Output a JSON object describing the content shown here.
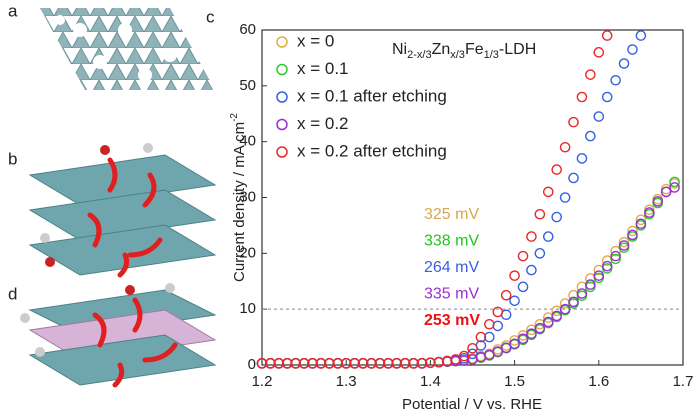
{
  "panel_labels": [
    "a",
    "b",
    "d"
  ],
  "chart_data": {
    "type": "scatter",
    "panel_label": "c",
    "x_label": "Potential / V vs. RHE",
    "y_label": [
      "Current density / mA cm",
      "-2"
    ],
    "formula": [
      "Ni",
      "2-x/3",
      "Zn",
      "x/3",
      "Fe",
      "1/3",
      "-LDH"
    ],
    "xlim": [
      1.2,
      1.7
    ],
    "xticks": [
      1.2,
      1.3,
      1.4,
      1.5,
      1.6,
      1.7
    ],
    "ylim": [
      0,
      60
    ],
    "yticks": [
      0,
      10,
      20,
      30,
      40,
      50,
      60
    ],
    "hline": 10,
    "x": [
      1.2,
      1.21,
      1.22,
      1.23,
      1.24,
      1.25,
      1.26,
      1.27,
      1.28,
      1.29,
      1.3,
      1.31,
      1.32,
      1.33,
      1.34,
      1.35,
      1.36,
      1.37,
      1.38,
      1.39,
      1.4,
      1.41,
      1.42,
      1.43,
      1.44,
      1.45,
      1.46,
      1.47,
      1.48,
      1.49,
      1.5,
      1.51,
      1.52,
      1.53,
      1.54,
      1.55,
      1.56,
      1.57,
      1.58,
      1.59,
      1.6,
      1.61,
      1.62,
      1.63,
      1.64,
      1.65,
      1.66,
      1.67,
      1.68,
      1.69
    ],
    "series": [
      {
        "name": "x = 0",
        "color": "#e2ac48",
        "values": [
          0.3,
          0.3,
          0.3,
          0.3,
          0.3,
          0.3,
          0.3,
          0.3,
          0.3,
          0.3,
          0.3,
          0.3,
          0.3,
          0.3,
          0.3,
          0.3,
          0.3,
          0.3,
          0.3,
          0.3,
          0.4,
          0.5,
          0.6,
          0.7,
          0.9,
          1.2,
          1.6,
          2,
          2.8,
          3.5,
          4.4,
          5.3,
          6.3,
          7.3,
          8.5,
          9.7,
          11,
          12.5,
          14,
          15.5,
          17,
          18.7,
          20.4,
          22,
          24,
          26,
          27.8,
          29.7,
          31.5,
          32.5
        ]
      },
      {
        "name": "x = 0.1",
        "color": "#2ecb2e",
        "values": [
          0.3,
          0.3,
          0.3,
          0.3,
          0.3,
          0.3,
          0.3,
          0.3,
          0.3,
          0.3,
          0.3,
          0.3,
          0.3,
          0.3,
          0.3,
          0.3,
          0.3,
          0.3,
          0.3,
          0.3,
          0.4,
          0.5,
          0.6,
          0.7,
          0.8,
          1.0,
          1.3,
          1.7,
          2.3,
          3,
          3.7,
          4.5,
          5.4,
          6.4,
          7.5,
          8.6,
          9.8,
          11,
          12.4,
          14,
          15.6,
          17.3,
          19,
          21,
          23,
          25,
          27,
          29,
          31,
          32.8
        ]
      },
      {
        "name": "x = 0.1 after etching",
        "color": "#3461e0",
        "values": [
          0.3,
          0.3,
          0.3,
          0.3,
          0.3,
          0.3,
          0.3,
          0.3,
          0.3,
          0.3,
          0.3,
          0.3,
          0.3,
          0.3,
          0.3,
          0.3,
          0.3,
          0.3,
          0.3,
          0.3,
          0.4,
          0.5,
          0.7,
          0.9,
          1.2,
          2,
          3.5,
          5,
          7,
          9,
          11.5,
          14,
          17,
          20,
          23,
          26.5,
          30,
          33.5,
          37,
          41,
          44.5,
          48,
          51,
          54,
          56.5,
          59,
          null,
          null,
          null,
          null
        ]
      },
      {
        "name": "x = 0.2",
        "color": "#9a2ed6",
        "values": [
          0.3,
          0.3,
          0.3,
          0.3,
          0.3,
          0.3,
          0.3,
          0.3,
          0.3,
          0.3,
          0.3,
          0.3,
          0.3,
          0.3,
          0.3,
          0.3,
          0.3,
          0.3,
          0.3,
          0.3,
          0.4,
          0.5,
          0.6,
          0.7,
          0.8,
          1.0,
          1.4,
          1.8,
          2.4,
          3.1,
          3.8,
          4.7,
          5.6,
          6.6,
          7.7,
          8.8,
          10,
          11.3,
          12.8,
          14.4,
          16,
          17.7,
          19.5,
          21.4,
          23.3,
          25.3,
          27.3,
          29.3,
          31,
          31.8
        ]
      },
      {
        "name": "x = 0.2 after etching",
        "color": "#e82828",
        "values": [
          0.3,
          0.3,
          0.3,
          0.3,
          0.3,
          0.3,
          0.3,
          0.3,
          0.3,
          0.3,
          0.3,
          0.3,
          0.3,
          0.3,
          0.3,
          0.3,
          0.3,
          0.3,
          0.3,
          0.3,
          0.4,
          0.5,
          0.7,
          1.0,
          1.6,
          3,
          5,
          7.3,
          9.5,
          12.5,
          16,
          19.5,
          23,
          27,
          31,
          35,
          39,
          43.5,
          48,
          52,
          56,
          59,
          null,
          null,
          null,
          null,
          null,
          null,
          null,
          null
        ]
      }
    ],
    "annotations": [
      {
        "text": "325 mV",
        "color": "#d8a850",
        "bold": false
      },
      {
        "text": "338 mV",
        "color": "#22c422",
        "bold": false
      },
      {
        "text": "264 mV",
        "color": "#3b5fe0",
        "bold": false
      },
      {
        "text": "335 mV",
        "color": "#9b2fd0",
        "bold": false
      },
      {
        "text": "253 mV",
        "color": "#ee1111",
        "bold": true
      }
    ]
  }
}
